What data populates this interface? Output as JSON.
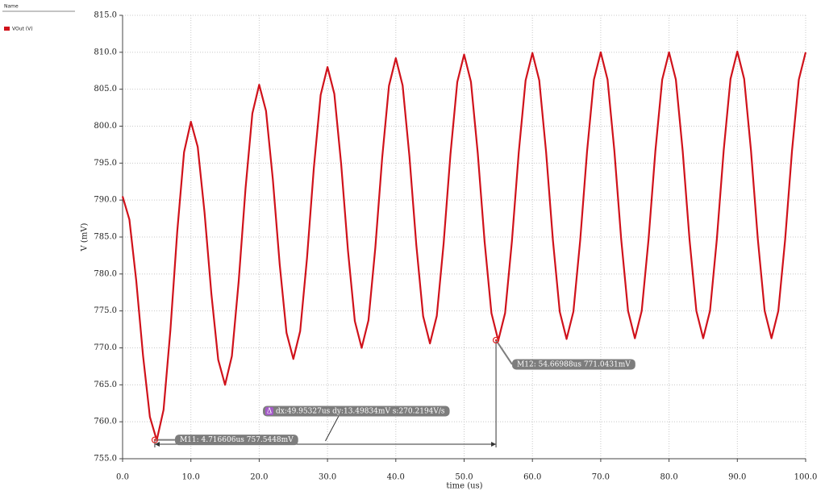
{
  "sidebar_header": "Name",
  "chart_data": {
    "type": "line",
    "ylabel": "V (mV)",
    "xlabel": "time (us)",
    "xlim": [
      0,
      100
    ],
    "ylim": [
      755,
      815
    ],
    "xticks": [
      {
        "value": 0,
        "label": "0.0"
      },
      {
        "value": 10,
        "label": "10.0"
      },
      {
        "value": 20,
        "label": "20.0"
      },
      {
        "value": 30,
        "label": "30.0"
      },
      {
        "value": 40,
        "label": "40.0"
      },
      {
        "value": 50,
        "label": "50.0"
      },
      {
        "value": 60,
        "label": "60.0"
      },
      {
        "value": 70,
        "label": "70.0"
      },
      {
        "value": 80,
        "label": "80.0"
      },
      {
        "value": 90,
        "label": "90.0"
      },
      {
        "value": 100,
        "label": "100.0"
      }
    ],
    "yticks": [
      {
        "value": 755,
        "label": "755.0"
      },
      {
        "value": 760,
        "label": "760.0"
      },
      {
        "value": 765,
        "label": "765.0"
      },
      {
        "value": 770,
        "label": "770.0"
      },
      {
        "value": 775,
        "label": "775.0"
      },
      {
        "value": 780,
        "label": "780.0"
      },
      {
        "value": 785,
        "label": "785.0"
      },
      {
        "value": 790,
        "label": "790.0"
      },
      {
        "value": 795,
        "label": "795.0"
      },
      {
        "value": 800,
        "label": "800.0"
      },
      {
        "value": 805,
        "label": "805.0"
      },
      {
        "value": 810,
        "label": "810.0"
      },
      {
        "value": 815,
        "label": "815.0"
      }
    ],
    "grid": true,
    "x": [
      0,
      1,
      2,
      3,
      4,
      5,
      6,
      7,
      8,
      9,
      10,
      11,
      12,
      13,
      14,
      15,
      16,
      17,
      18,
      19,
      20,
      21,
      22,
      23,
      24,
      25,
      26,
      27,
      28,
      29,
      30,
      31,
      32,
      33,
      34,
      35,
      36,
      37,
      38,
      39,
      40,
      41,
      42,
      43,
      44,
      45,
      46,
      47,
      48,
      49,
      50,
      51,
      52,
      53,
      54,
      55,
      56,
      57,
      58,
      59,
      60,
      61,
      62,
      63,
      64,
      65,
      66,
      67,
      68,
      69,
      70,
      71,
      72,
      73,
      74,
      75,
      76,
      77,
      78,
      79,
      80,
      81,
      82,
      83,
      84,
      85,
      86,
      87,
      88,
      89,
      90,
      91,
      92,
      93,
      94,
      95,
      96,
      97,
      98,
      99,
      100
    ],
    "series": [
      {
        "name": "VOut (V)",
        "color": "#d0121b",
        "values": [
          790.5,
          787.35,
          779.1,
          768.9,
          760.65,
          757.5,
          761.62,
          772.39,
          785.71,
          796.48,
          800.6,
          797.2,
          788.3,
          777.3,
          768.4,
          765.0,
          768.88,
          779.03,
          791.57,
          801.72,
          805.6,
          802.06,
          792.78,
          781.32,
          772.04,
          768.5,
          772.27,
          782.15,
          794.35,
          804.23,
          808.0,
          804.37,
          794.87,
          783.13,
          773.63,
          770.0,
          773.74,
          783.54,
          795.66,
          805.46,
          809.2,
          805.51,
          795.86,
          783.94,
          774.29,
          770.6,
          774.33,
          784.11,
          796.19,
          805.97,
          809.7,
          806.0,
          796.33,
          784.37,
          774.7,
          771.0,
          774.71,
          784.44,
          796.46,
          806.19,
          809.9,
          806.2,
          796.53,
          784.57,
          774.9,
          771.2,
          774.91,
          784.61,
          796.59,
          806.29,
          810.0,
          806.3,
          796.63,
          784.67,
          775.0,
          771.3,
          775.0,
          784.67,
          796.63,
          806.3,
          810.0,
          806.3,
          796.63,
          784.67,
          775.0,
          771.3,
          775.01,
          784.71,
          796.69,
          806.39,
          810.1,
          806.39,
          796.69,
          784.71,
          775.01,
          771.3,
          775.0,
          784.67,
          796.63,
          806.3,
          810.0
        ]
      }
    ],
    "markers": [
      {
        "x": 4.716606,
        "y": 757.5448,
        "label": "M11: 4.716606us 757.5448mV"
      },
      {
        "x": 54.66988,
        "y": 771.0431,
        "label": "M12: 54.66988us 771.0431mV"
      }
    ],
    "delta_icon": "Δ",
    "delta_label": "dx:49.95327us dy:13.49834mV s:270.2194V/s"
  }
}
